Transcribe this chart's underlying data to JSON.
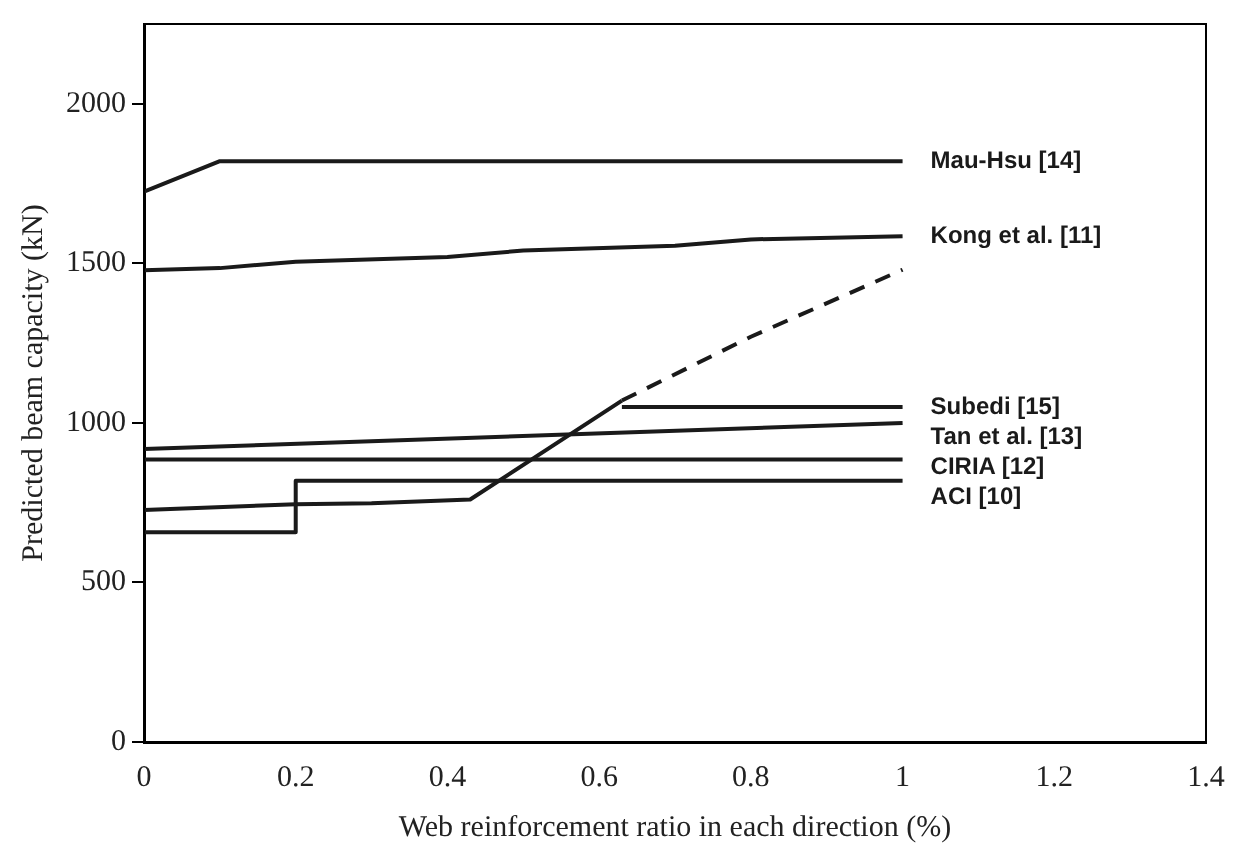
{
  "chart_data": {
    "type": "line",
    "xlabel": "Web reinforcement ratio in each direction (%)",
    "ylabel": "Predicted beam capacity (kN)",
    "xlim": [
      0,
      1.4
    ],
    "xticks": [
      0,
      0.2,
      0.4,
      0.6,
      0.8,
      1,
      1.2,
      1.4
    ],
    "ylim": [
      0,
      2250
    ],
    "yticks": [
      0,
      500,
      1000,
      1500,
      2000
    ],
    "grid": false,
    "legend": false,
    "marker": "none",
    "line_style": "solid",
    "series": [
      {
        "name": "Mau-Hsu [14]",
        "color": "#1a1a1a",
        "x": [
          0,
          0.1,
          1
        ],
        "values": [
          1725,
          1820,
          1820
        ]
      },
      {
        "name": "Kong et al. [11]",
        "color": "#1a1a1a",
        "x": [
          0,
          0.1,
          0.2,
          0.4,
          0.5,
          0.7,
          0.8,
          1
        ],
        "values": [
          1478,
          1485,
          1505,
          1520,
          1540,
          1555,
          1575,
          1585
        ]
      },
      {
        "name": "Subedi [15]",
        "color": "#1a1a1a",
        "x": [
          0.63,
          1
        ],
        "values": [
          1050,
          1050
        ]
      },
      {
        "name": "Tan et al. [13]",
        "color": "#1a1a1a",
        "x": [
          0,
          1
        ],
        "values": [
          918,
          1000
        ]
      },
      {
        "name": "CIRIA [12]",
        "color": "#1a1a1a",
        "x": [
          0,
          1
        ],
        "values": [
          885,
          885
        ]
      },
      {
        "name": "ACI [10]",
        "color": "#1a1a1a",
        "x": [
          0,
          0.2,
          0.2,
          1
        ],
        "values": [
          657,
          657,
          819,
          819
        ]
      },
      {
        "color": "#1a1a1a",
        "x": [
          0,
          0.2,
          0.3,
          0.43,
          0.63
        ],
        "values": [
          727,
          745,
          748,
          760,
          1070
        ]
      },
      {
        "color": "#1a1a1a",
        "line_style": "dashed",
        "x": [
          0.63,
          0.8,
          1
        ],
        "values": [
          1070,
          1270,
          1480
        ]
      }
    ]
  }
}
